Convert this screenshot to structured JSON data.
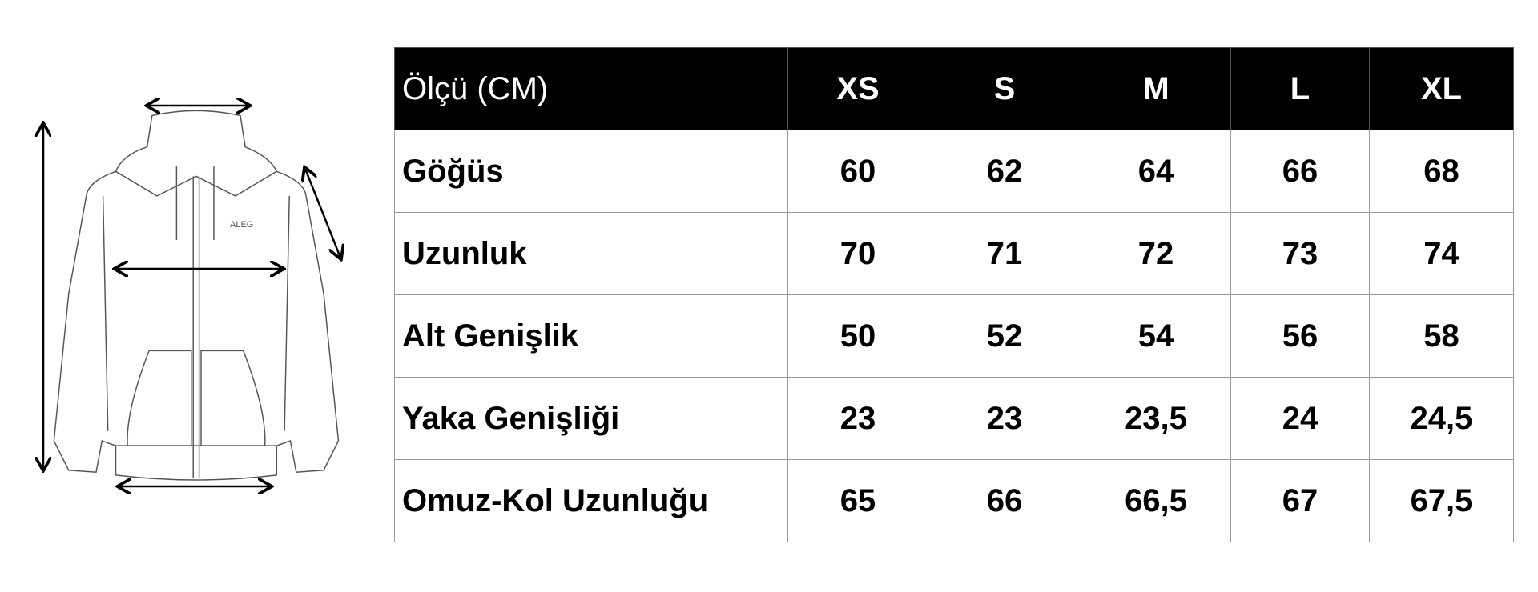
{
  "illustration": {
    "brand_label": "ALEG",
    "icon": "zip-hoodie-measurement-diagram"
  },
  "table": {
    "header": [
      "Ölçü (CM)",
      "XS",
      "S",
      "M",
      "L",
      "XL"
    ],
    "rows": [
      [
        "Göğüs",
        "60",
        "62",
        "64",
        "66",
        "68"
      ],
      [
        "Uzunluk",
        "70",
        "71",
        "72",
        "73",
        "74"
      ],
      [
        "Alt Genişlik",
        "50",
        "52",
        "54",
        "56",
        "58"
      ],
      [
        "Yaka Genişliği",
        "23",
        "23",
        "23,5",
        "24",
        "24,5"
      ],
      [
        "Omuz-Kol Uzunluğu",
        "65",
        "66",
        "66,5",
        "67",
        "67,5"
      ]
    ]
  },
  "colors": {
    "header_bg": "#000000",
    "header_text": "#ffffff",
    "grid": "#9a9a9a"
  }
}
